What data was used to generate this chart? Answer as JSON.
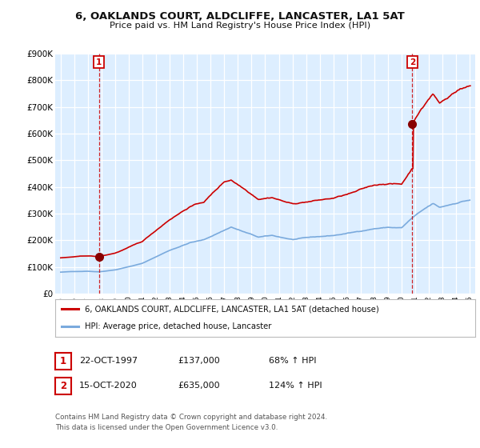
{
  "title1": "6, OAKLANDS COURT, ALDCLIFFE, LANCASTER, LA1 5AT",
  "title2": "Price paid vs. HM Land Registry's House Price Index (HPI)",
  "ylim": [
    0,
    900000
  ],
  "yticks": [
    0,
    100000,
    200000,
    300000,
    400000,
    500000,
    600000,
    700000,
    800000,
    900000
  ],
  "ytick_labels": [
    "£0",
    "£100K",
    "£200K",
    "£300K",
    "£400K",
    "£500K",
    "£600K",
    "£700K",
    "£800K",
    "£900K"
  ],
  "plot_bg_color": "#ddeeff",
  "grid_color": "#ffffff",
  "sale1_date_x": 1997.8,
  "sale1_price": 137000,
  "sale2_date_x": 2020.79,
  "sale2_price": 635000,
  "legend_line1": "6, OAKLANDS COURT, ALDCLIFFE, LANCASTER, LA1 5AT (detached house)",
  "legend_line2": "HPI: Average price, detached house, Lancaster",
  "footnote1": "Contains HM Land Registry data © Crown copyright and database right 2024.",
  "footnote2": "This data is licensed under the Open Government Licence v3.0.",
  "table_row1": [
    "1",
    "22-OCT-1997",
    "£137,000",
    "68% ↑ HPI"
  ],
  "table_row2": [
    "2",
    "15-OCT-2020",
    "£635,000",
    "124% ↑ HPI"
  ],
  "red_color": "#cc0000",
  "blue_color": "#7aaadd",
  "marker_color": "#880000",
  "xlim_left": 1994.6,
  "xlim_right": 2025.4
}
